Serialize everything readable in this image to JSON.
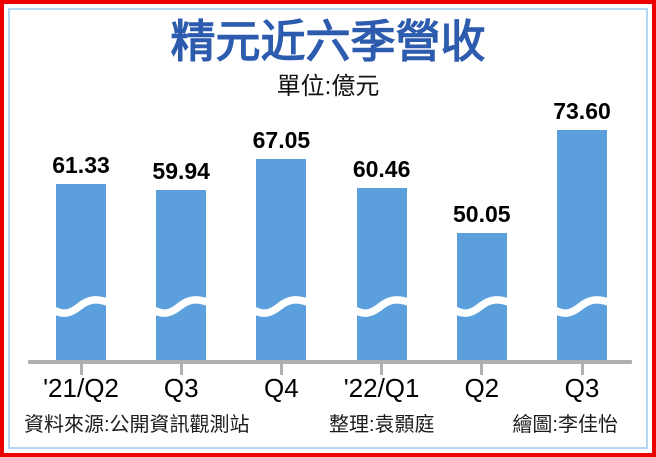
{
  "frame": {
    "outer_border_color": "#ee0000",
    "inner_border_color": "#b6d7f3"
  },
  "header": {
    "title": "精元近六季營收",
    "title_color": "#2d5cae",
    "subtitle": "單位:億元"
  },
  "chart_data": {
    "type": "bar",
    "title": "精元近六季營收",
    "unit_label": "單位:億元",
    "categories": [
      "'21/Q2",
      "Q3",
      "Q4",
      "'22/Q1",
      "Q2",
      "Q3"
    ],
    "values": [
      61.33,
      59.94,
      67.05,
      60.46,
      50.05,
      73.6
    ],
    "value_labels": [
      "61.33",
      "59.94",
      "67.05",
      "60.46",
      "50.05",
      "73.60"
    ],
    "bar_color": "#5ba0dc",
    "axis_color": "#b0b0b0",
    "tick_color": "#b0b0b0",
    "axis_break": true,
    "grid": false,
    "legend": "none"
  },
  "footer": {
    "source": "資料來源:公開資訊觀測站",
    "editor": "整理:袁顥庭",
    "illustrator": "繪圖:李佳怡"
  }
}
